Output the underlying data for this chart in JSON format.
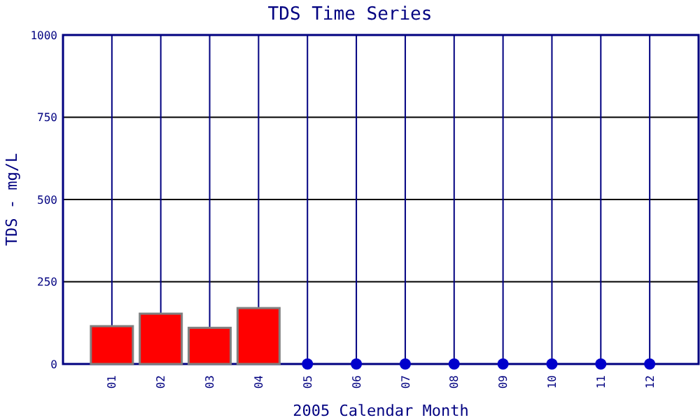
{
  "chart_data": {
    "type": "bar",
    "title": "TDS Time Series",
    "xlabel": "2005 Calendar Month",
    "ylabel": "TDS - mg/L",
    "categories": [
      "01",
      "02",
      "03",
      "04",
      "05",
      "06",
      "07",
      "08",
      "09",
      "10",
      "11",
      "12"
    ],
    "series": [
      {
        "color": "#ff0000",
        "values": [
          115,
          153,
          110,
          170,
          null,
          null,
          null,
          null,
          null,
          null,
          null,
          null
        ]
      },
      {
        "type": "scatter",
        "color": "#0000cc",
        "x": [
          "05",
          "06",
          "07",
          "08",
          "09",
          "10",
          "11",
          "12"
        ],
        "values": [
          0,
          0,
          0,
          0,
          0,
          0,
          0,
          0
        ],
        "marker": "circle"
      }
    ],
    "ylim": [
      0,
      1000
    ],
    "yticks": [
      0,
      250,
      500,
      750,
      1000
    ],
    "grid": true
  }
}
